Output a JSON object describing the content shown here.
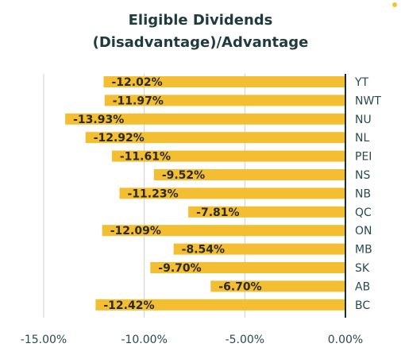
{
  "chart_data": {
    "type": "bar",
    "orientation": "horizontal",
    "title": [
      "Eligible Dividends",
      "(Disadvantage)/Advantage"
    ],
    "categories": [
      "YT",
      "NWT",
      "NU",
      "NL",
      "PEI",
      "NS",
      "NB",
      "QC",
      "ON",
      "MB",
      "SK",
      "AB",
      "BC"
    ],
    "values": [
      -12.02,
      -11.97,
      -13.93,
      -12.92,
      -11.61,
      -9.52,
      -11.23,
      -7.81,
      -12.09,
      -8.54,
      -9.7,
      -6.7,
      -12.42
    ],
    "data_labels": [
      "-12.02%",
      "-11.97%",
      "-13.93%",
      "-12.92%",
      "-11.61%",
      "-9.52%",
      "-11.23%",
      "-7.81%",
      "-12.09%",
      "-8.54%",
      "-9.70%",
      "-6.70%",
      "-12.42%"
    ],
    "xlim": [
      -15,
      0
    ],
    "ticks": [
      -15,
      -10,
      -5,
      0
    ],
    "tick_labels": [
      "-15.00%",
      "-10.00%",
      "-5.00%",
      "0.00%"
    ],
    "grid": true,
    "bar_color": "#f3be32",
    "axis_color": "#1c2b2d",
    "grid_color": "#cfcfcf"
  }
}
